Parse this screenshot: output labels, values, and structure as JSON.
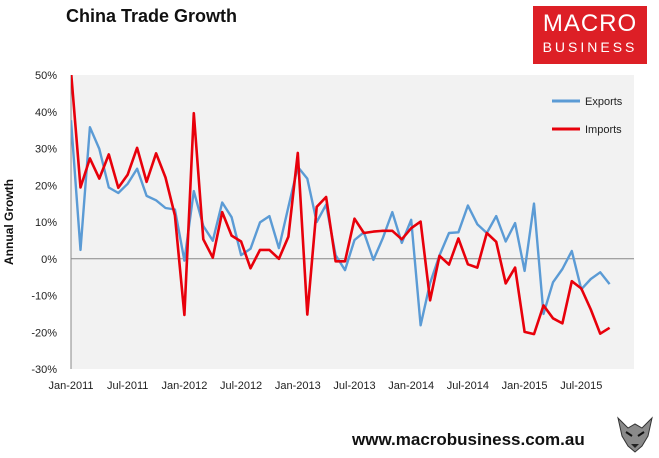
{
  "chart_data": {
    "type": "line",
    "title": "China Trade Growth",
    "ylabel": "Annual Growth",
    "xlabel": "",
    "ylim": [
      -30,
      50
    ],
    "yticks": [
      -30,
      -20,
      -10,
      0,
      10,
      20,
      30,
      40,
      50
    ],
    "ytick_labels": [
      "-30%",
      "-20%",
      "-10%",
      "0%",
      "10%",
      "20%",
      "30%",
      "40%",
      "50%"
    ],
    "xtick_labels": [
      "Jan-2011",
      "Jul-2011",
      "Jan-2012",
      "Jul-2012",
      "Jan-2013",
      "Jul-2013",
      "Jan-2014",
      "Jul-2014",
      "Jan-2015",
      "Jul-2015"
    ],
    "xtick_month_index": [
      0,
      6,
      12,
      18,
      24,
      30,
      36,
      42,
      48,
      54
    ],
    "x_start": "Jan-2011",
    "grid": false,
    "legend_position": "top-right",
    "series": [
      {
        "name": "Exports",
        "color": "#5b9bd5",
        "values": [
          37.7,
          2.4,
          35.8,
          29.9,
          19.4,
          17.9,
          20.4,
          24.5,
          17.1,
          15.9,
          13.8,
          13.4,
          -0.5,
          18.4,
          8.9,
          4.9,
          15.3,
          11.3,
          1.0,
          2.7,
          9.9,
          11.6,
          2.9,
          14.1,
          25.0,
          21.8,
          10.0,
          14.7,
          1.0,
          -3.1,
          5.1,
          7.2,
          -0.3,
          5.6,
          12.7,
          4.3,
          10.6,
          -18.1,
          -6.6,
          0.9,
          7.0,
          7.2,
          14.5,
          9.4,
          7.0,
          11.6,
          4.7,
          9.7,
          -3.3,
          15.0,
          -15.0,
          -6.4,
          -2.8,
          2.1,
          -8.3,
          -5.5,
          -3.7,
          -6.9
        ]
      },
      {
        "name": "Imports",
        "color": "#e8000b",
        "values": [
          51.0,
          19.4,
          27.3,
          21.8,
          28.4,
          19.3,
          22.9,
          30.2,
          20.9,
          28.7,
          22.1,
          11.8,
          -15.3,
          39.6,
          5.3,
          0.3,
          12.7,
          6.3,
          4.7,
          -2.6,
          2.4,
          2.4,
          0.0,
          6.0,
          28.8,
          -15.2,
          14.1,
          16.8,
          -0.7,
          -0.7,
          10.9,
          7.0,
          7.4,
          7.6,
          7.6,
          5.3,
          8.3,
          10.1,
          -11.3,
          0.8,
          -1.6,
          5.5,
          -1.5,
          -2.4,
          7.0,
          4.6,
          -6.7,
          -2.4,
          -19.9,
          -20.5,
          -12.7,
          -16.2,
          -17.6,
          -6.1,
          -8.1,
          -13.8,
          -20.4,
          -18.8
        ]
      }
    ]
  },
  "logo": {
    "line1": "MACRO",
    "line2": "BUSINESS"
  },
  "footer": {
    "url": "www.macrobusiness.com.au"
  },
  "wolf_icon": "wolf-head-icon"
}
